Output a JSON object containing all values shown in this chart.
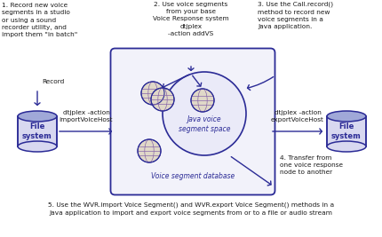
{
  "bg_color": "#ffffff",
  "blue": "#2b2b96",
  "black": "#1a1a1a",
  "light_blue_fill": "#e8e8f5",
  "cyl_fill": "#d8d8f0",
  "cyl_top": "#a0a8d8",
  "label1": "1. Record new voice\nsegments in a studio\nor using a sound\nrecorder utility, and\nimport them \"in batch\"",
  "label2_line1": "2. Use voice segments",
  "label2_line2": "from your base",
  "label2_line3": "Voice Response system",
  "label2_line4": "dtjplex",
  "label2_line5": "-action addVS",
  "label3": "3. Use the Call.record()\nmethod to record new\nvoice segments in a\nJava application.",
  "label4": "4. Transfer from\none voice response\nnode to another",
  "label5a": "5. Use the WVR.import Voice Segment() and WVR.export Voice Segment() methods in a",
  "label5b": "Java application to import and export voice segments from or to a file or audio stream",
  "label_record": "Record",
  "label_import": "dtjplex -action\nimportVoiceHost",
  "label_export": "dtjplex -action\nexportVoiceHost",
  "label_java": "Java voice\nsegment space",
  "label_vsdb": "Voice segment database",
  "label_fs": "File\nsystem"
}
